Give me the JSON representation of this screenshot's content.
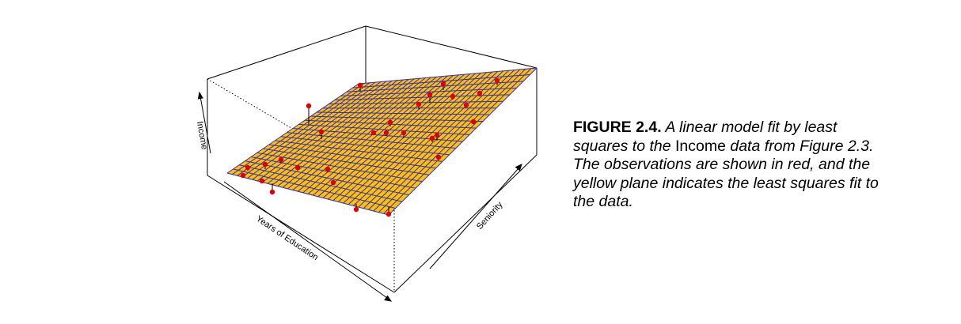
{
  "figure": {
    "axis_labels": {
      "z": "Income",
      "x": "Years of Education",
      "y": "Seniority"
    },
    "caption": {
      "label": "FIGURE 2.4.",
      "text_part1": " A linear model fit by least squares to the ",
      "term": "Income",
      "text_part2": " data from Figure 2.3. The observations are shown in red, and the yellow plane indicates the least squares fit to the data."
    },
    "colors": {
      "plane_fill": "#FFC000",
      "grid_lines": "#2B2BD6",
      "points": "#E00000"
    }
  }
}
